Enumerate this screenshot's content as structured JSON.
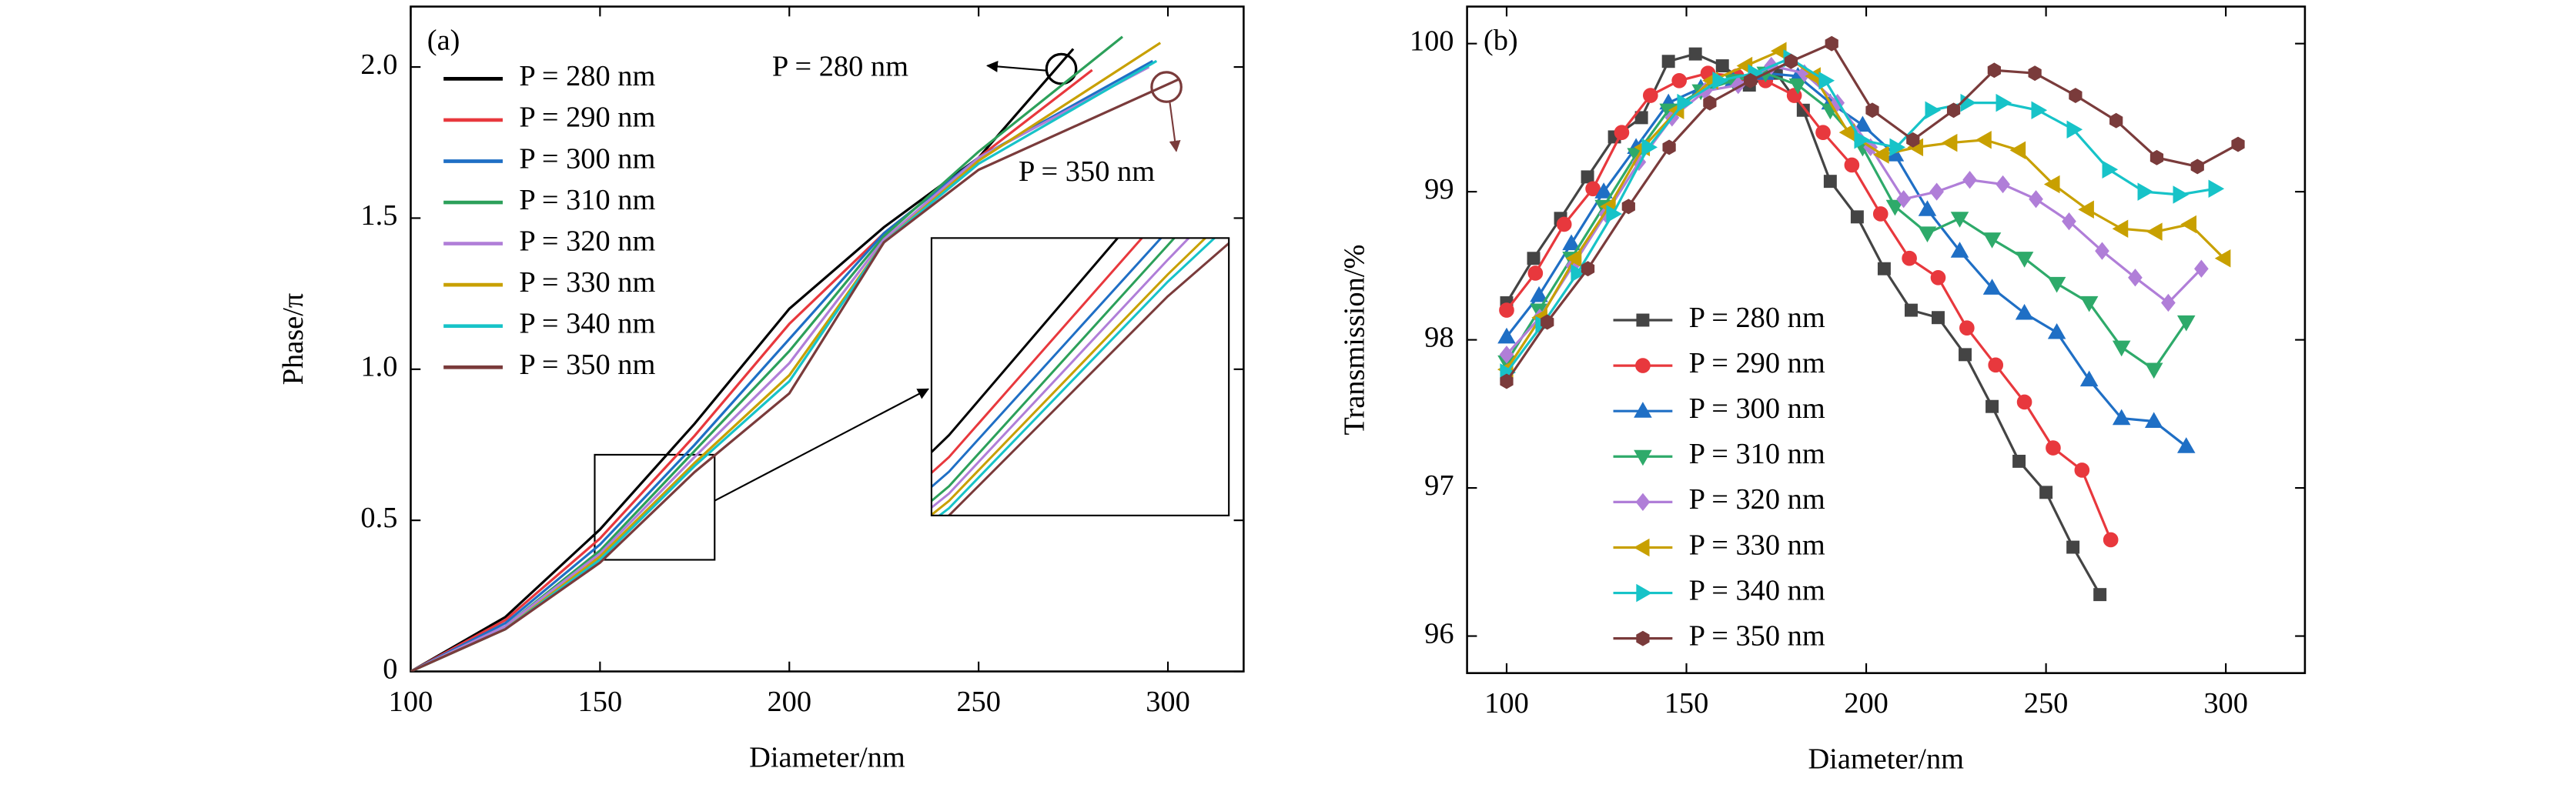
{
  "chart_data": [
    {
      "type": "line",
      "label": "(a)",
      "x_label": "Diameter/nm",
      "y_label": "Phase/π",
      "xlim": [
        100,
        320
      ],
      "ylim": [
        0,
        2.2
      ],
      "xticks": [
        100,
        150,
        200,
        250,
        300
      ],
      "yticks": [
        0,
        0.5,
        {
          "value": 1,
          "label": "1.0"
        },
        1.5,
        {
          "value": 2,
          "label": "2.0"
        }
      ],
      "annotations": [
        "P = 280 nm",
        "P = 350 nm"
      ],
      "series": [
        {
          "name": "P = 280 nm",
          "color": "#000000",
          "x": [
            100,
            125,
            150,
            175,
            200,
            225,
            250,
            275
          ],
          "values": [
            0,
            0.18,
            0.47,
            0.82,
            1.2,
            1.47,
            1.7,
            2.06
          ]
        },
        {
          "name": "P = 290 nm",
          "color": "#e8383d",
          "x": [
            100,
            125,
            150,
            175,
            200,
            225,
            250,
            280
          ],
          "values": [
            0,
            0.17,
            0.44,
            0.78,
            1.15,
            1.45,
            1.7,
            1.99
          ]
        },
        {
          "name": "P = 300 nm",
          "color": "#1f6fc5",
          "x": [
            100,
            125,
            150,
            175,
            200,
            225,
            250,
            296
          ],
          "values": [
            0,
            0.16,
            0.42,
            0.75,
            1.1,
            1.45,
            1.7,
            2.02
          ]
        },
        {
          "name": "P = 310 nm",
          "color": "#2ca05a",
          "x": [
            100,
            125,
            150,
            175,
            200,
            225,
            250,
            288
          ],
          "values": [
            0,
            0.15,
            0.4,
            0.73,
            1.06,
            1.44,
            1.72,
            2.1
          ]
        },
        {
          "name": "P = 320 nm",
          "color": "#b07ed8",
          "x": [
            100,
            125,
            150,
            175,
            200,
            225,
            250,
            295
          ],
          "values": [
            0,
            0.15,
            0.39,
            0.71,
            1.02,
            1.43,
            1.7,
            2.0
          ]
        },
        {
          "name": "P = 330 nm",
          "color": "#c8a000",
          "x": [
            100,
            125,
            150,
            175,
            200,
            225,
            250,
            298
          ],
          "values": [
            0,
            0.14,
            0.38,
            0.69,
            0.98,
            1.42,
            1.69,
            2.08
          ]
        },
        {
          "name": "P = 340 nm",
          "color": "#17c3c8",
          "x": [
            100,
            125,
            150,
            175,
            200,
            225,
            250,
            297
          ],
          "values": [
            0,
            0.14,
            0.37,
            0.68,
            0.96,
            1.42,
            1.68,
            2.02
          ]
        },
        {
          "name": "P = 350 nm",
          "color": "#7a3b3b",
          "x": [
            100,
            125,
            150,
            175,
            200,
            225,
            250,
            303
          ],
          "values": [
            0,
            0.14,
            0.36,
            0.66,
            0.92,
            1.42,
            1.66,
            1.96
          ]
        }
      ]
    },
    {
      "type": "line",
      "label": "(b)",
      "x_label": "Diameter/nm",
      "y_label": "Transmission/%",
      "xlim": [
        89,
        322
      ],
      "ylim": [
        95.75,
        100.25
      ],
      "xticks": [
        100,
        150,
        200,
        250,
        300
      ],
      "yticks": [
        96,
        97,
        98,
        99,
        100
      ],
      "series": [
        {
          "name": "P = 280 nm",
          "color": "#444444",
          "marker": "square",
          "x": [
            100,
            107.5,
            115,
            122.5,
            130,
            137.5,
            145,
            152.5,
            160,
            167.5,
            175,
            182.5,
            190,
            197.5,
            205,
            212.5,
            220,
            227.5,
            235,
            242.5,
            250,
            257.5,
            265
          ],
          "values": [
            98.25,
            98.55,
            98.82,
            99.1,
            99.37,
            99.5,
            99.88,
            99.93,
            99.85,
            99.72,
            99.8,
            99.55,
            99.07,
            98.83,
            98.48,
            98.2,
            98.15,
            97.9,
            97.55,
            97.18,
            96.97,
            96.6,
            96.28
          ]
        },
        {
          "name": "P = 290 nm",
          "color": "#e8383d",
          "marker": "circle",
          "x": [
            100,
            108,
            116,
            124,
            132,
            140,
            148,
            156,
            164,
            172,
            180,
            188,
            196,
            204,
            212,
            220,
            228,
            236,
            244,
            252,
            260,
            268
          ],
          "values": [
            98.2,
            98.45,
            98.78,
            99.02,
            99.4,
            99.65,
            99.75,
            99.8,
            99.78,
            99.75,
            99.65,
            99.4,
            99.18,
            98.85,
            98.55,
            98.42,
            98.08,
            97.83,
            97.58,
            97.27,
            97.12,
            96.65
          ]
        },
        {
          "name": "P = 300 nm",
          "color": "#1f6fc5",
          "marker": "triangle-up",
          "x": [
            100,
            109,
            118,
            127,
            136,
            145,
            154,
            163,
            172,
            181,
            190,
            199,
            208,
            217,
            226,
            235,
            244,
            253,
            262,
            271,
            280,
            289
          ],
          "values": [
            98.02,
            98.3,
            98.65,
            99.0,
            99.3,
            99.6,
            99.7,
            99.75,
            99.8,
            99.78,
            99.6,
            99.45,
            99.25,
            98.88,
            98.6,
            98.35,
            98.18,
            98.05,
            97.73,
            97.47,
            97.45,
            97.28
          ]
        },
        {
          "name": "P = 310 nm",
          "color": "#2eaa6a",
          "marker": "triangle-down",
          "x": [
            100,
            109,
            118,
            127,
            136,
            145,
            154,
            163,
            172,
            181,
            190,
            199,
            208,
            217,
            226,
            235,
            244,
            253,
            262,
            271,
            280,
            289
          ],
          "values": [
            97.85,
            98.2,
            98.55,
            98.9,
            99.25,
            99.55,
            99.68,
            99.75,
            99.8,
            99.72,
            99.55,
            99.3,
            98.9,
            98.72,
            98.82,
            98.68,
            98.55,
            98.38,
            98.25,
            97.95,
            97.8,
            98.12
          ]
        },
        {
          "name": "P = 320 nm",
          "color": "#b07ed8",
          "marker": "diamond",
          "x": [
            100,
            109.2,
            118.4,
            127.6,
            136.8,
            146,
            155.2,
            164.4,
            173.6,
            182.8,
            192,
            201.2,
            210.4,
            219.6,
            228.8,
            238,
            247.2,
            256.4,
            265.6,
            274.8,
            284,
            293.2
          ],
          "values": [
            97.9,
            98.15,
            98.5,
            98.85,
            99.2,
            99.5,
            99.68,
            99.72,
            99.85,
            99.8,
            99.6,
            99.3,
            98.95,
            99.0,
            99.08,
            99.05,
            98.95,
            98.8,
            98.6,
            98.42,
            98.25,
            98.48
          ]
        },
        {
          "name": "P = 330 nm",
          "color": "#c8a000",
          "marker": "triangle-left",
          "x": [
            100,
            109.5,
            119,
            128.5,
            138,
            147.5,
            157,
            166.5,
            176,
            185.5,
            195,
            204.5,
            214,
            223.5,
            233,
            242.5,
            252,
            261.5,
            271,
            280.5,
            290,
            299.5
          ],
          "values": [
            97.8,
            98.15,
            98.55,
            98.9,
            99.3,
            99.55,
            99.75,
            99.85,
            99.95,
            99.78,
            99.4,
            99.25,
            99.3,
            99.33,
            99.35,
            99.28,
            99.05,
            98.88,
            98.75,
            98.73,
            98.78,
            98.55
          ]
        },
        {
          "name": "P = 340 nm",
          "color": "#17c3c8",
          "marker": "triangle-right",
          "x": [
            100,
            109.85,
            119.7,
            129.55,
            139.4,
            149.25,
            159.1,
            168.95,
            178.8,
            188.65,
            198.5,
            208.35,
            218.2,
            228.05,
            237.9,
            247.75,
            257.6,
            267.45,
            277.3,
            287.15,
            297
          ],
          "values": [
            97.78,
            98.1,
            98.45,
            98.85,
            99.3,
            99.6,
            99.75,
            99.8,
            99.9,
            99.75,
            99.35,
            99.3,
            99.55,
            99.6,
            99.6,
            99.55,
            99.42,
            99.15,
            99.0,
            98.98,
            99.02
          ]
        },
        {
          "name": "P = 350 nm",
          "color": "#7a3b3b",
          "marker": "hexagon",
          "x": [
            100,
            111.3,
            122.6,
            133.9,
            145.2,
            156.5,
            167.8,
            179.1,
            190.4,
            201.7,
            213,
            224.3,
            235.6,
            246.9,
            258.2,
            269.5,
            280.8,
            292.1,
            303.4
          ],
          "values": [
            97.72,
            98.12,
            98.48,
            98.9,
            99.3,
            99.6,
            99.75,
            99.88,
            100.0,
            99.55,
            99.35,
            99.55,
            99.82,
            99.8,
            99.65,
            99.48,
            99.23,
            99.17,
            99.32
          ]
        }
      ]
    }
  ]
}
